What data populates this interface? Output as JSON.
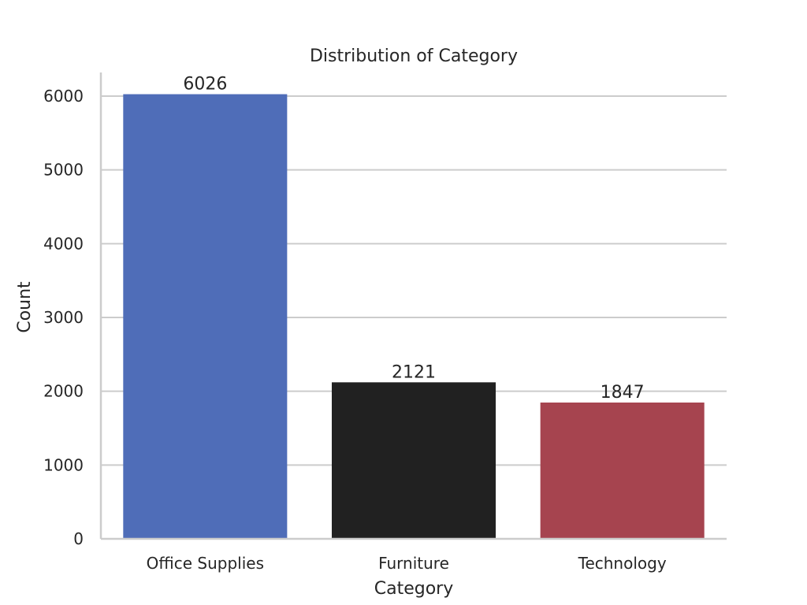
{
  "chart_data": {
    "type": "bar",
    "title": "Distribution of Category",
    "xlabel": "Category",
    "ylabel": "Count",
    "categories": [
      "Office Supplies",
      "Furniture",
      "Technology"
    ],
    "values": [
      6026,
      2121,
      1847
    ],
    "data_labels": [
      "6026",
      "2121",
      "1847"
    ],
    "colors": [
      "#4f6db8",
      "#212121",
      "#a6444f"
    ],
    "ylim": [
      0,
      6350
    ],
    "yticks": [
      0,
      1000,
      2000,
      3000,
      4000,
      5000,
      6000
    ],
    "ytick_labels": [
      "0",
      "1000",
      "2000",
      "3000",
      "4000",
      "5000",
      "6000"
    ],
    "grid": true,
    "grid_color": "#cccccc",
    "axis_color": "#cccccc",
    "text_color": "#262626"
  }
}
